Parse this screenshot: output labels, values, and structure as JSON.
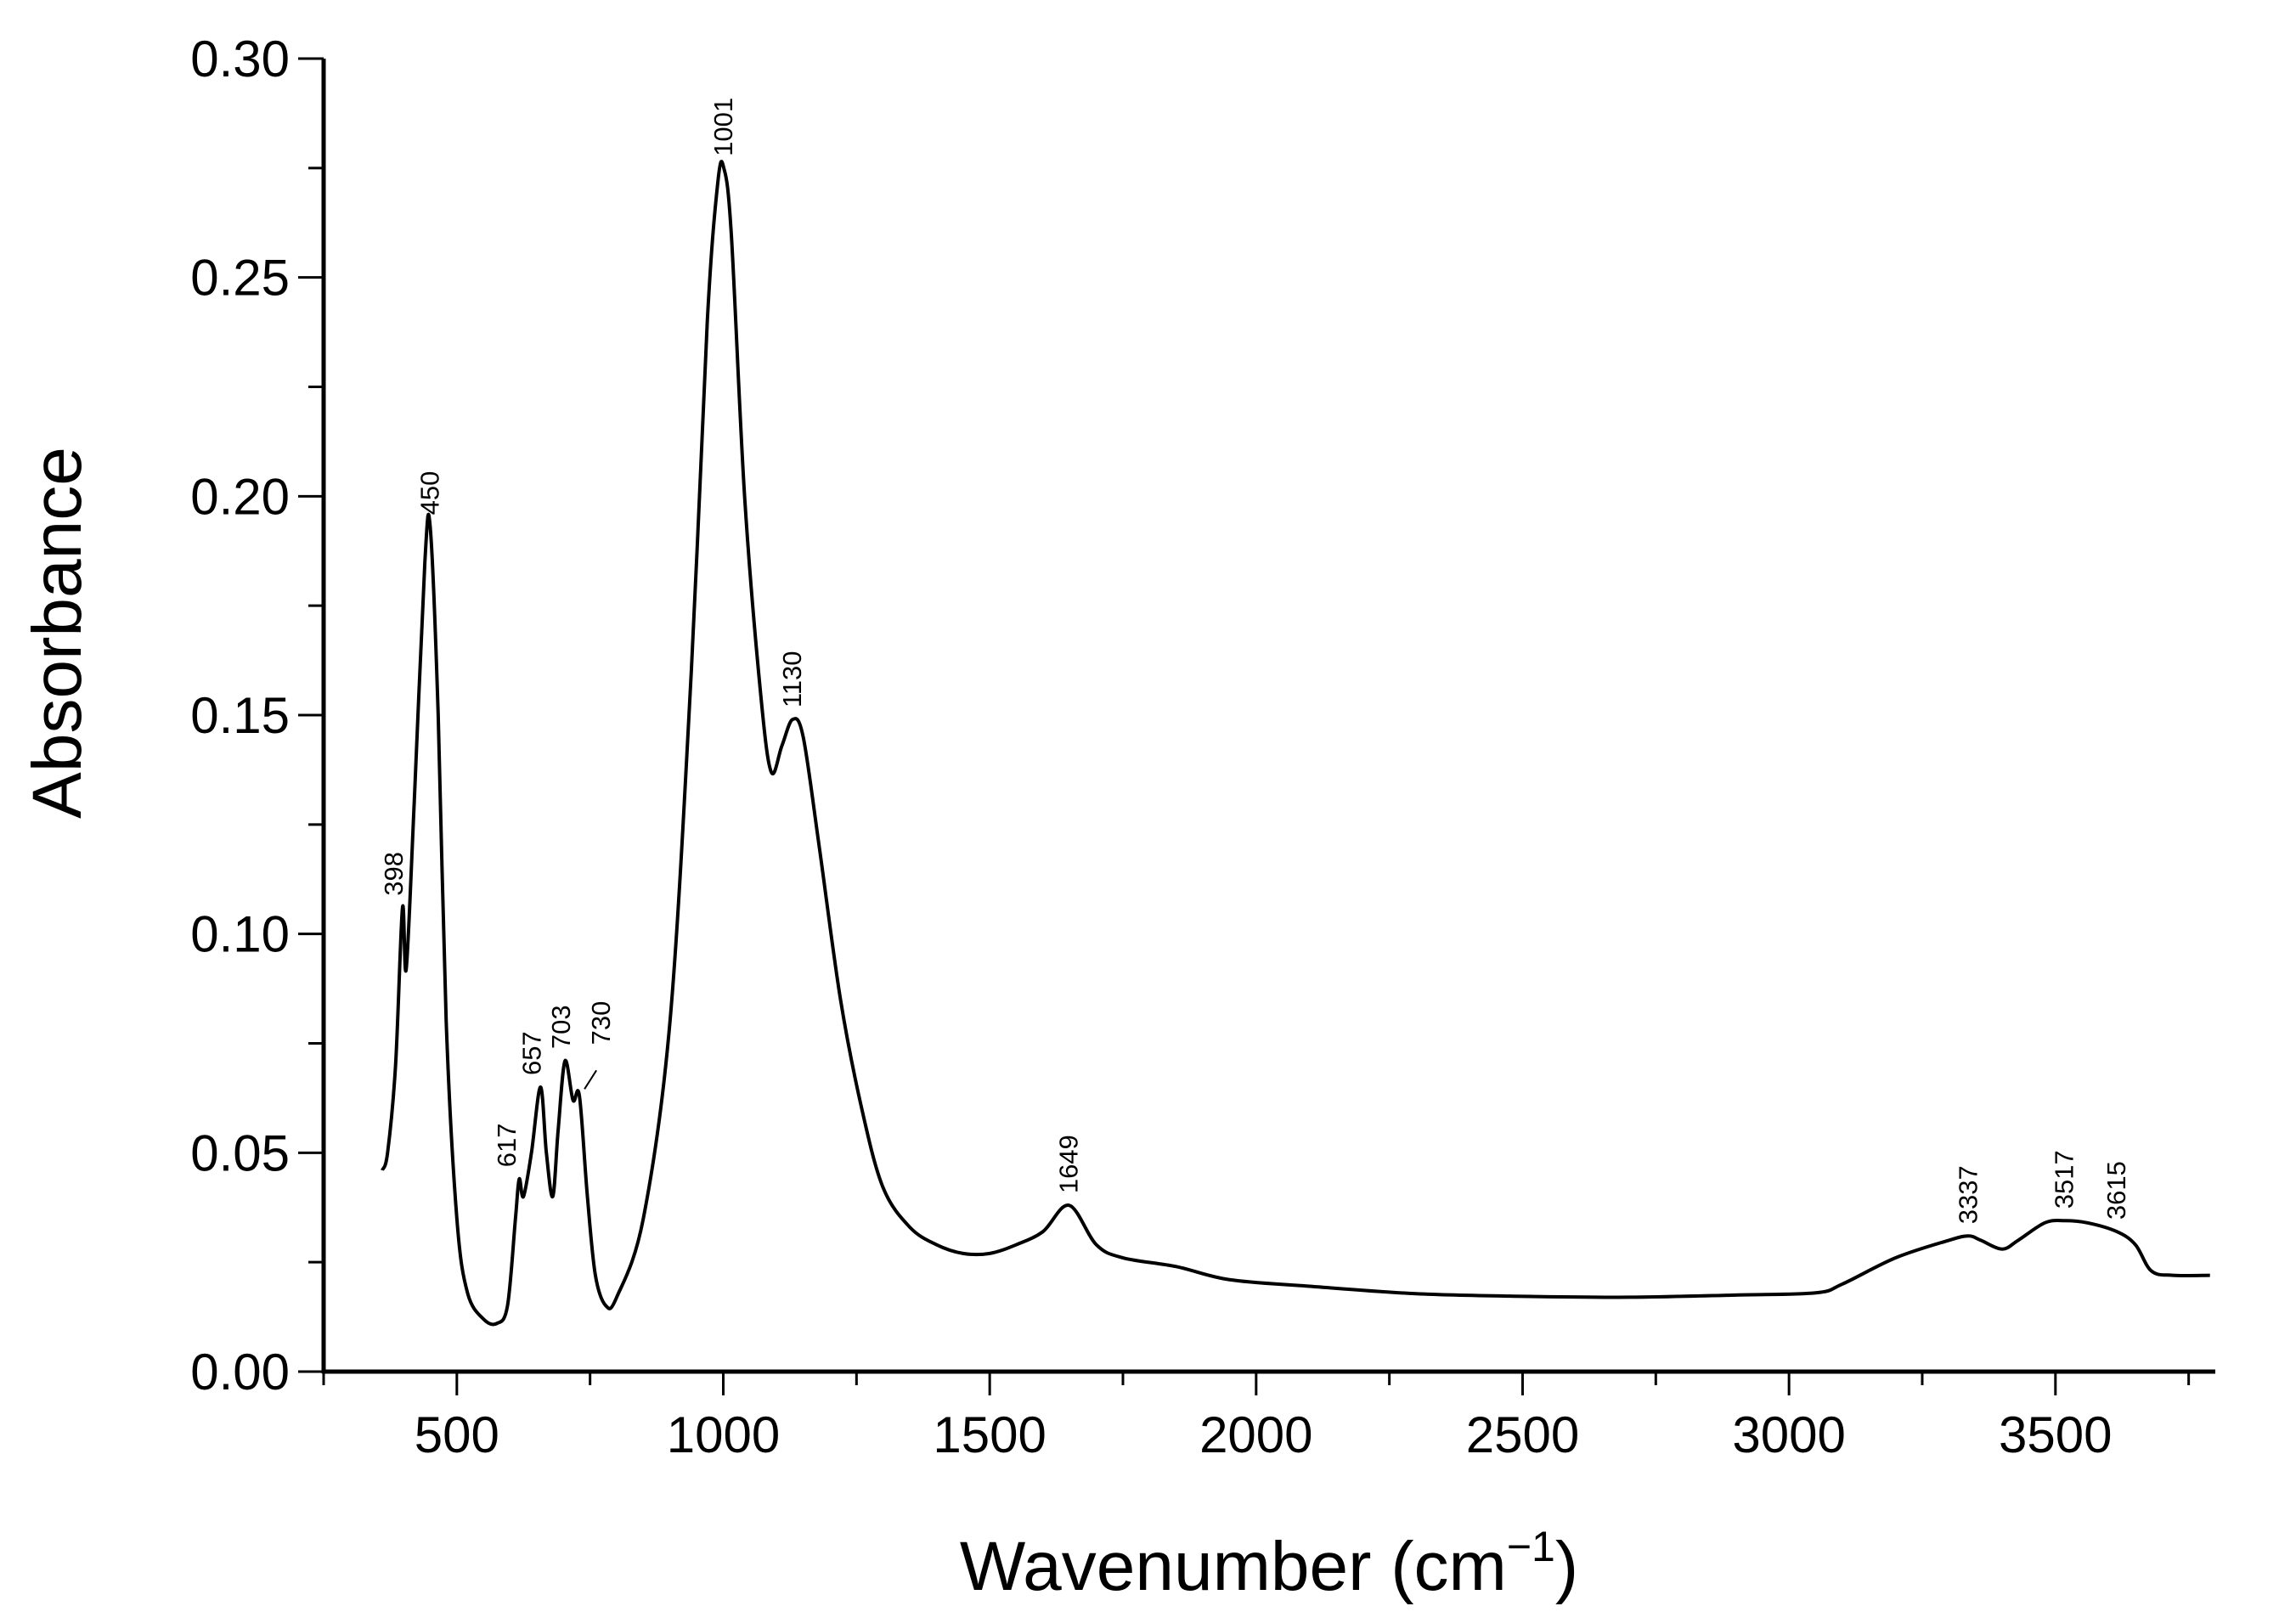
{
  "chart_data": {
    "type": "line",
    "title": "",
    "xlabel": "Wavenumber (cm",
    "xlabel_sup": "−1",
    "xlabel_close": ")",
    "ylabel": "Absorbance",
    "xlim": [
      250,
      3800
    ],
    "ylim": [
      0,
      0.3
    ],
    "grid": false,
    "line_color": "#000000",
    "x_ticks": [
      500,
      1000,
      1500,
      2000,
      2500,
      3000,
      3500
    ],
    "x_tick_labels": [
      "500",
      "1000",
      "1500",
      "2000",
      "2500",
      "3000",
      "3500"
    ],
    "y_ticks": [
      0,
      0.05,
      0.1,
      0.15,
      0.2,
      0.25,
      0.3
    ],
    "y_tick_labels": [
      "0.00",
      "0.05",
      "0.10",
      "0.15",
      "0.20",
      "0.25",
      "0.30"
    ],
    "series": [
      {
        "x": [
          360,
          370,
          385,
          398,
          405,
          420,
          440,
          450,
          465,
          480,
          500,
          520,
          550,
          575,
          595,
          610,
          617,
          625,
          640,
          657,
          668,
          680,
          690,
          703,
          718,
          730,
          745,
          760,
          780,
          800,
          850,
          900,
          940,
          970,
          990,
          1001,
          1015,
          1040,
          1070,
          1090,
          1110,
          1130,
          1150,
          1180,
          1220,
          1260,
          1300,
          1350,
          1400,
          1450,
          1500,
          1550,
          1600,
          1649,
          1700,
          1750,
          1850,
          1950,
          2100,
          2300,
          2500,
          2700,
          2900,
          3050,
          3100,
          3200,
          3300,
          3337,
          3360,
          3400,
          3430,
          3480,
          3517,
          3560,
          3615,
          3650,
          3680,
          3720,
          3790
        ],
        "y": [
          0.046,
          0.05,
          0.07,
          0.106,
          0.092,
          0.13,
          0.185,
          0.193,
          0.15,
          0.08,
          0.035,
          0.018,
          0.012,
          0.011,
          0.015,
          0.035,
          0.044,
          0.04,
          0.05,
          0.065,
          0.05,
          0.04,
          0.055,
          0.071,
          0.062,
          0.063,
          0.04,
          0.022,
          0.015,
          0.017,
          0.035,
          0.08,
          0.16,
          0.24,
          0.272,
          0.275,
          0.26,
          0.2,
          0.155,
          0.137,
          0.143,
          0.149,
          0.145,
          0.12,
          0.085,
          0.06,
          0.042,
          0.033,
          0.029,
          0.027,
          0.027,
          0.029,
          0.032,
          0.038,
          0.029,
          0.026,
          0.024,
          0.021,
          0.0195,
          0.0178,
          0.0172,
          0.017,
          0.0175,
          0.018,
          0.02,
          0.026,
          0.03,
          0.031,
          0.03,
          0.028,
          0.03,
          0.034,
          0.0345,
          0.034,
          0.032,
          0.029,
          0.023,
          0.022,
          0.022
        ]
      }
    ],
    "annotations": [
      {
        "text": "398",
        "x": 398,
        "y": 0.106
      },
      {
        "text": "450",
        "x": 450,
        "y": 0.193
      },
      {
        "text": "617",
        "x": 617,
        "y": 0.044
      },
      {
        "text": "657",
        "x": 657,
        "y": 0.065
      },
      {
        "text": "703",
        "x": 703,
        "y": 0.071
      },
      {
        "text": "730",
        "x": 730,
        "y": 0.063
      },
      {
        "text": "1001",
        "x": 1001,
        "y": 0.275
      },
      {
        "text": "1130",
        "x": 1130,
        "y": 0.149
      },
      {
        "text": "1649",
        "x": 1649,
        "y": 0.038
      },
      {
        "text": "3337",
        "x": 3337,
        "y": 0.031
      },
      {
        "text": "3517",
        "x": 3517,
        "y": 0.0345
      },
      {
        "text": "3615",
        "x": 3615,
        "y": 0.032
      }
    ]
  }
}
